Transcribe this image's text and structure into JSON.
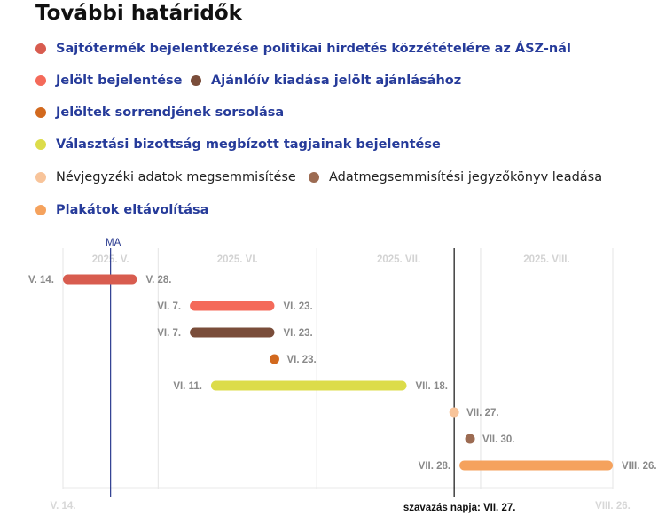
{
  "title": "További határidők",
  "legend": [
    {
      "label": "Sajtótermék bejelentkezése politikai hirdetés közzétételére az ÁSZ-nál",
      "color": "#d85c4f",
      "bold": true
    },
    {
      "label": "Jelölt bejelentése",
      "color": "#f46a5a",
      "bold": true
    },
    {
      "label": "Ajánlóív kiadása jelölt ajánlásához",
      "color": "#7a4d3a",
      "bold": true
    },
    {
      "label": "Jelöltek sorrendjének sorsolása",
      "color": "#d2691e",
      "bold": true
    },
    {
      "label": "Választási bizottság megbízott tagjainak bejelentése",
      "color": "#dcdc4a",
      "bold": true
    },
    {
      "label": "Névjegyzéki adatok megsemmisítése",
      "color": "#f8c49a",
      "bold": false
    },
    {
      "label": "Adatmegsemmisítési jegyzőkönyv leadása",
      "color": "#9c6b52",
      "bold": false
    },
    {
      "label": "Plakátok eltávolítása",
      "color": "#f5a25d",
      "bold": true
    }
  ],
  "chart_data": {
    "type": "gantt",
    "year": 2025,
    "range": {
      "start": "2025-05-14",
      "end": "2025-08-26",
      "start_label": "V. 14.",
      "end_label": "VIII. 26."
    },
    "months": [
      {
        "label": "2025. V.",
        "start": "2025-05-14"
      },
      {
        "label": "2025. VI.",
        "start": "2025-06-01"
      },
      {
        "label": "2025. VII.",
        "start": "2025-07-01"
      },
      {
        "label": "2025. VIII.",
        "start": "2025-08-01"
      }
    ],
    "today": {
      "label": "MA",
      "date": "2025-05-23"
    },
    "election": {
      "label": "szavazás napja: VII. 27.",
      "date": "2025-07-27"
    },
    "tasks": [
      {
        "start": "2025-05-14",
        "end": "2025-05-28",
        "start_label": "V. 14.",
        "end_label": "V. 28.",
        "color": "#d85c4f"
      },
      {
        "start": "2025-06-07",
        "end": "2025-06-23",
        "start_label": "VI. 7.",
        "end_label": "VI. 23.",
        "color": "#f46a5a"
      },
      {
        "start": "2025-06-07",
        "end": "2025-06-23",
        "start_label": "VI. 7.",
        "end_label": "VI. 23.",
        "color": "#7a4d3a"
      },
      {
        "start": "2025-06-23",
        "end": "2025-06-23",
        "start_label": "",
        "end_label": "VI. 23.",
        "color": "#d2691e"
      },
      {
        "start": "2025-06-11",
        "end": "2025-07-18",
        "start_label": "VI. 11.",
        "end_label": "VII. 18.",
        "color": "#dcdc4a"
      },
      {
        "start": "2025-07-27",
        "end": "2025-07-27",
        "start_label": "",
        "end_label": "VII. 27.",
        "color": "#f8c49a"
      },
      {
        "start": "2025-07-30",
        "end": "2025-07-30",
        "start_label": "",
        "end_label": "VII. 30.",
        "color": "#9c6b52"
      },
      {
        "start": "2025-07-28",
        "end": "2025-08-26",
        "start_label": "VII. 28.",
        "end_label": "VIII. 26.",
        "color": "#f5a25d"
      }
    ]
  }
}
